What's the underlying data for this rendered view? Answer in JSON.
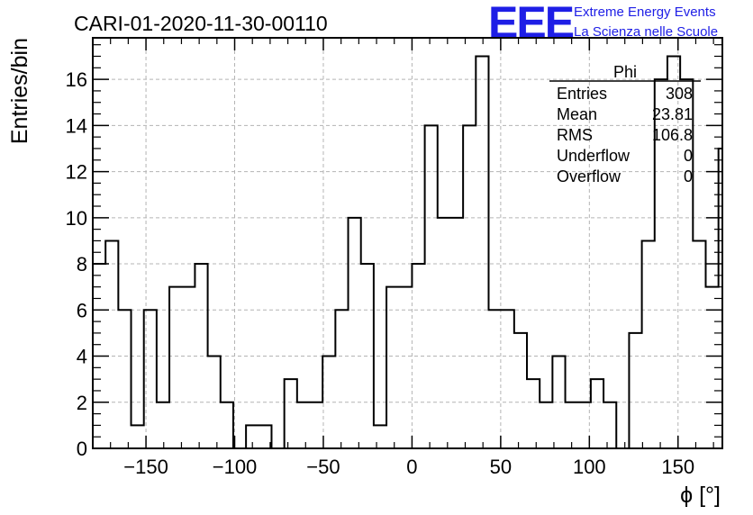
{
  "chart_data": {
    "type": "histogram",
    "title": "CARI-01-2020-11-30-00110",
    "xlabel": "ϕ [°]",
    "ylabel": "Entries/bin",
    "xlim": [
      -180,
      175
    ],
    "ylim": [
      0,
      17.8
    ],
    "bin_width": 7.2,
    "x_ticks": [
      -150,
      -100,
      -50,
      0,
      50,
      100,
      150
    ],
    "x_tick_labels": [
      "−150",
      "−100",
      "−50",
      "0",
      "50",
      "100",
      "150"
    ],
    "y_ticks": [
      0,
      2,
      4,
      6,
      8,
      10,
      12,
      14,
      16
    ],
    "y_tick_labels": [
      "0",
      "2",
      "4",
      "6",
      "8",
      "10",
      "12",
      "14",
      "16"
    ],
    "grid": true,
    "bins": [
      {
        "x_low": -180.0,
        "value": 8
      },
      {
        "x_low": -172.8,
        "value": 9
      },
      {
        "x_low": -165.6,
        "value": 6
      },
      {
        "x_low": -158.4,
        "value": 1
      },
      {
        "x_low": -151.2,
        "value": 6
      },
      {
        "x_low": -144.0,
        "value": 2
      },
      {
        "x_low": -136.8,
        "value": 7
      },
      {
        "x_low": -129.6,
        "value": 7
      },
      {
        "x_low": -122.4,
        "value": 8
      },
      {
        "x_low": -115.2,
        "value": 4
      },
      {
        "x_low": -108.0,
        "value": 2
      },
      {
        "x_low": -100.8,
        "value": 0
      },
      {
        "x_low": -93.6,
        "value": 1
      },
      {
        "x_low": -86.4,
        "value": 1
      },
      {
        "x_low": -79.2,
        "value": 0
      },
      {
        "x_low": -72.0,
        "value": 3
      },
      {
        "x_low": -64.8,
        "value": 2
      },
      {
        "x_low": -57.6,
        "value": 2
      },
      {
        "x_low": -50.4,
        "value": 4
      },
      {
        "x_low": -43.2,
        "value": 6
      },
      {
        "x_low": -36.0,
        "value": 10
      },
      {
        "x_low": -28.8,
        "value": 8
      },
      {
        "x_low": -21.6,
        "value": 1
      },
      {
        "x_low": -14.4,
        "value": 7
      },
      {
        "x_low": -7.2,
        "value": 7
      },
      {
        "x_low": 0.0,
        "value": 8
      },
      {
        "x_low": 7.2,
        "value": 14
      },
      {
        "x_low": 14.4,
        "value": 10
      },
      {
        "x_low": 21.6,
        "value": 10
      },
      {
        "x_low": 28.8,
        "value": 14
      },
      {
        "x_low": 36.0,
        "value": 17
      },
      {
        "x_low": 43.2,
        "value": 6
      },
      {
        "x_low": 50.4,
        "value": 6
      },
      {
        "x_low": 57.6,
        "value": 5
      },
      {
        "x_low": 64.8,
        "value": 3
      },
      {
        "x_low": 72.0,
        "value": 2
      },
      {
        "x_low": 79.2,
        "value": 4
      },
      {
        "x_low": 86.4,
        "value": 2
      },
      {
        "x_low": 93.6,
        "value": 2
      },
      {
        "x_low": 100.8,
        "value": 3
      },
      {
        "x_low": 108.0,
        "value": 2
      },
      {
        "x_low": 115.2,
        "value": 0
      },
      {
        "x_low": 122.4,
        "value": 5
      },
      {
        "x_low": 129.6,
        "value": 9
      },
      {
        "x_low": 136.8,
        "value": 16
      },
      {
        "x_low": 144.0,
        "value": 17
      },
      {
        "x_low": 151.2,
        "value": 16
      },
      {
        "x_low": 158.4,
        "value": 9
      },
      {
        "x_low": 165.6,
        "value": 7
      },
      {
        "x_low": 172.8,
        "value": 13
      }
    ],
    "stats_box": {
      "title": "Phi",
      "rows": [
        {
          "label": "Entries",
          "value": "308"
        },
        {
          "label": "Mean",
          "value": "23.81"
        },
        {
          "label": "RMS",
          "value": "106.8"
        },
        {
          "label": "Underflow",
          "value": "0"
        },
        {
          "label": "Overflow",
          "value": "0"
        }
      ]
    }
  },
  "logo": {
    "text": "EEE",
    "line1": "Extreme Energy Events",
    "line2": "La Scienza nelle Scuole"
  },
  "colors": {
    "line": "#000000",
    "grid": "#b4b4b4",
    "logo": "#1e1ee6"
  }
}
